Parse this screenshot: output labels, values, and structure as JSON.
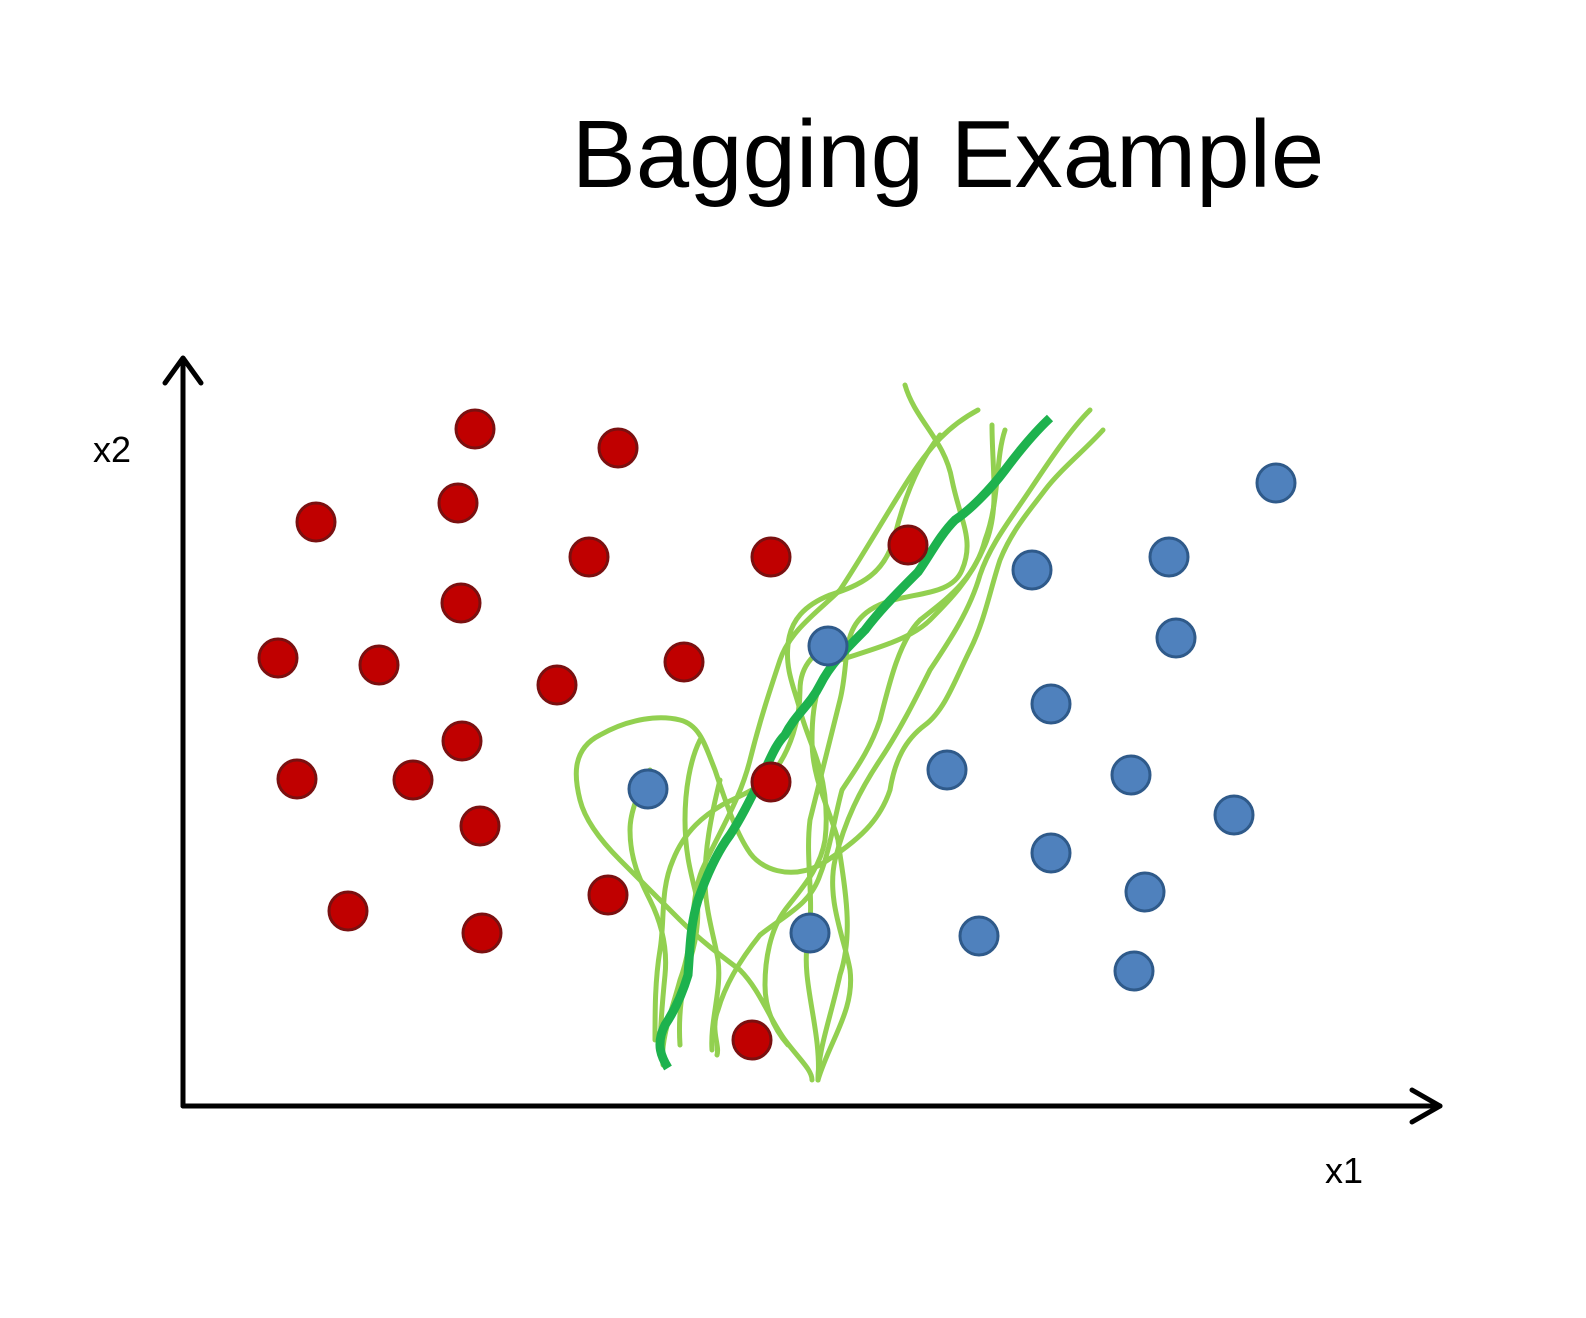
{
  "title": "Bagging Example",
  "axes": {
    "x_label": "x1",
    "y_label": "x2"
  },
  "colors": {
    "class_red": "#c00000",
    "class_red_edge": "#7a1010",
    "class_blue": "#4f81bd",
    "class_blue_edge": "#2f5a8a",
    "bagged_boundary": "#1db24e",
    "bootstrap_boundaries": "#92d050",
    "axis": "#000000"
  },
  "legend": []
}
